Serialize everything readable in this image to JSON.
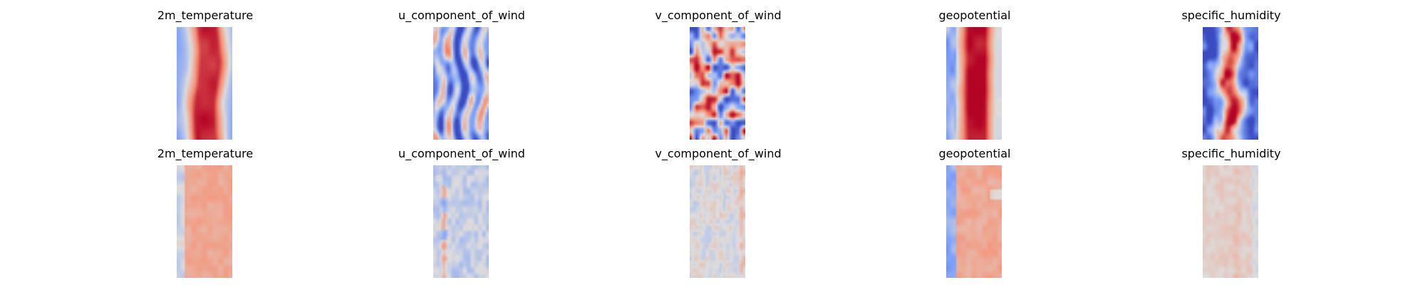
{
  "chart_data": {
    "type": "heatmap",
    "colormap": "coolwarm",
    "axes_visible": false,
    "grid": false,
    "layout": "2 rows x 5 columns",
    "rows": [
      {
        "panels": [
          {
            "title": "2m_temperature",
            "pattern": "central-warm-band",
            "intensity": 1.0
          },
          {
            "title": "u_component_of_wind",
            "pattern": "wavy-streaks",
            "intensity": 1.0
          },
          {
            "title": "v_component_of_wind",
            "pattern": "eddies",
            "intensity": 1.0
          },
          {
            "title": "geopotential",
            "pattern": "central-warm-band-edges",
            "intensity": 1.0
          },
          {
            "title": "specific_humidity",
            "pattern": "humid-core",
            "intensity": 1.0
          }
        ]
      },
      {
        "panels": [
          {
            "title": "2m_temperature",
            "pattern": "flat-warm-band",
            "intensity": 0.7
          },
          {
            "title": "u_component_of_wind",
            "pattern": "faint-streaks",
            "intensity": 0.6
          },
          {
            "title": "v_component_of_wind",
            "pattern": "faint-noise",
            "intensity": 0.5
          },
          {
            "title": "geopotential",
            "pattern": "warm-with-cold-left",
            "intensity": 0.75
          },
          {
            "title": "specific_humidity",
            "pattern": "pale-warm",
            "intensity": 0.45
          }
        ]
      }
    ]
  }
}
